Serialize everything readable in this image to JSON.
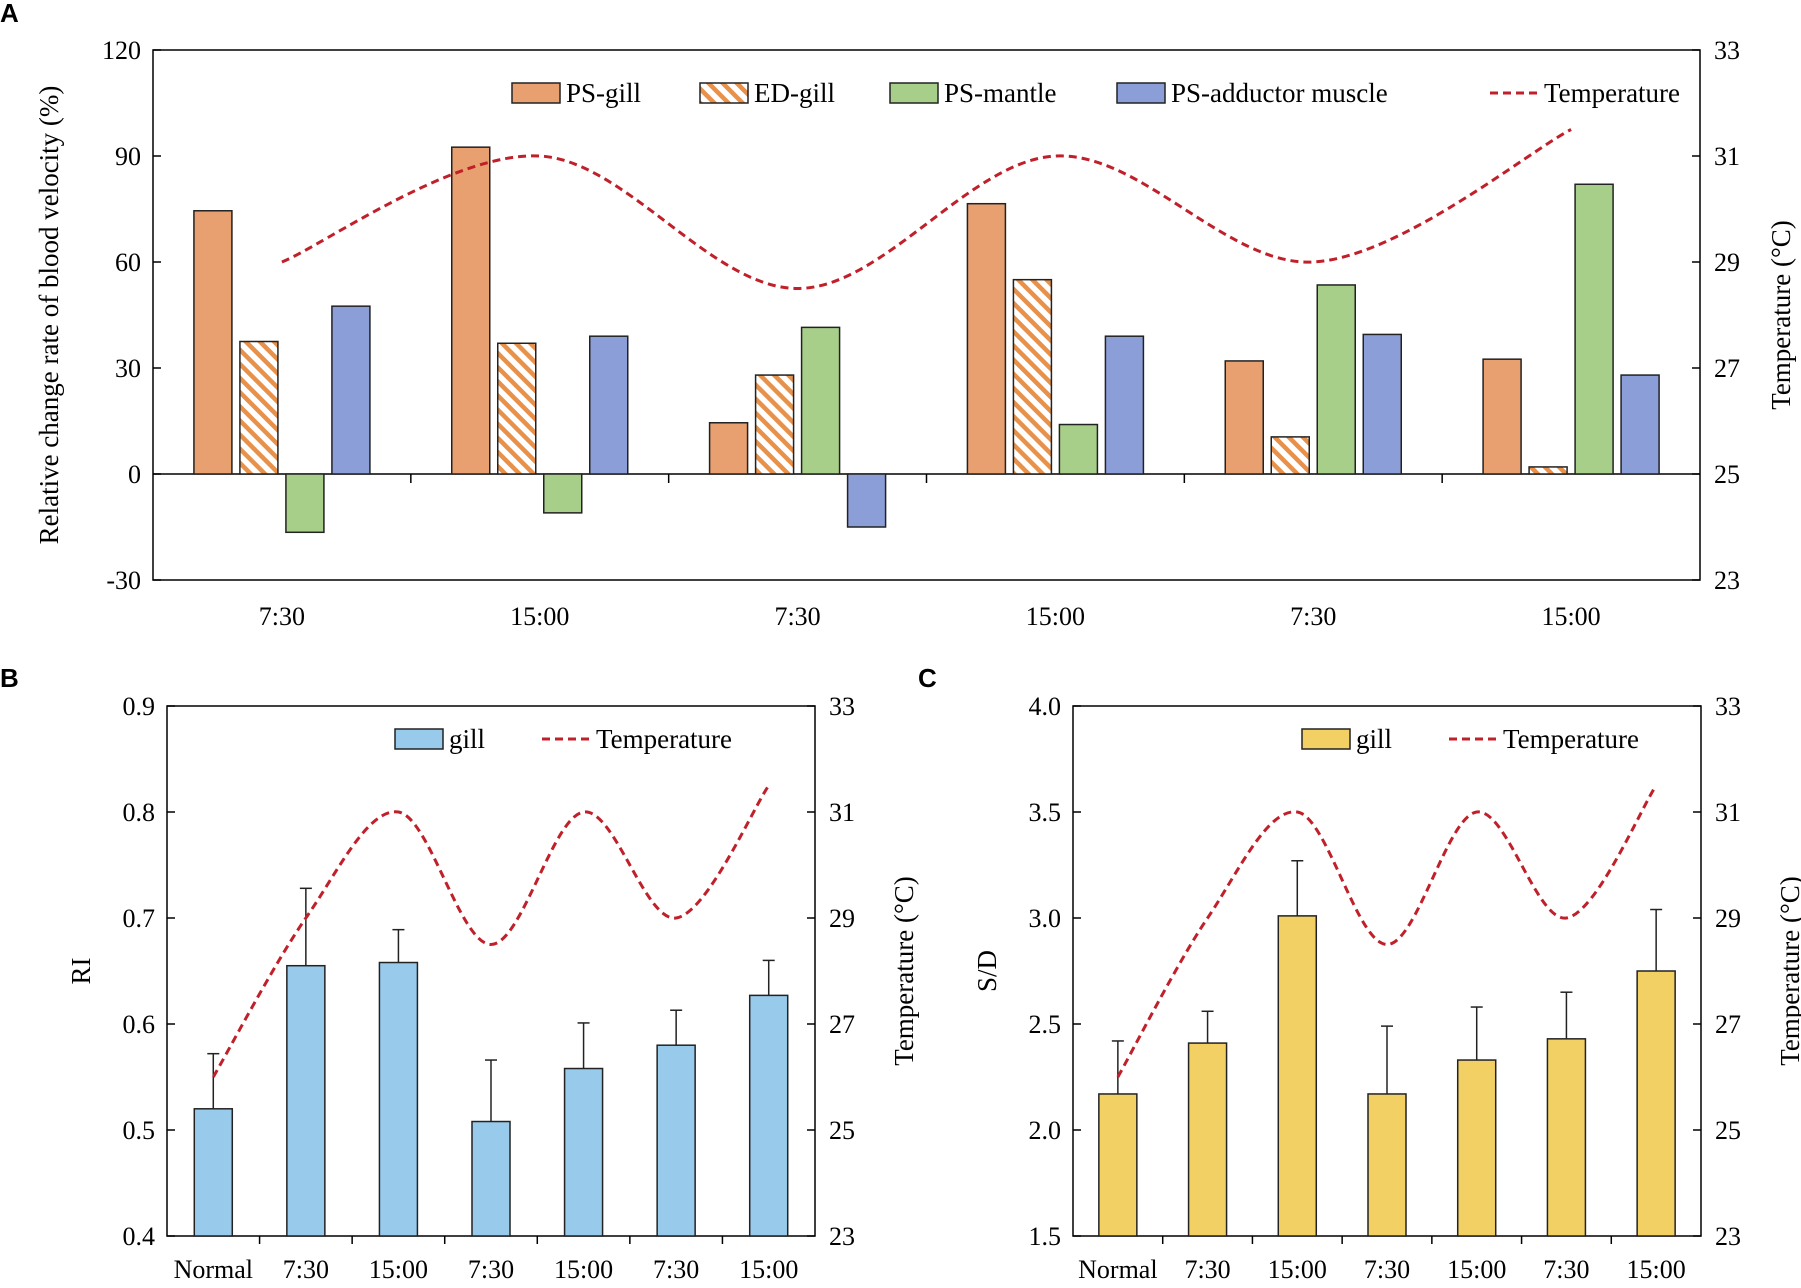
{
  "colors": {
    "ps_gill": "#E8A070",
    "ps_gill_edge": "#7A4A2A",
    "ed_gill_hatch": "#E8914A",
    "ps_mantle": "#A8CF8A",
    "ps_adductor": "#8C9ED8",
    "temperature": "#C0202A",
    "ri_bar": "#98CBEB",
    "sd_bar": "#F2D064"
  },
  "chart_data": [
    {
      "panel": "A",
      "type": "bar",
      "categories": [
        "7:30",
        "15:00",
        "7:30",
        "15:00",
        "7:30",
        "15:00"
      ],
      "ylabel": "Relative change rate of blood velocity (%)",
      "y2label": "Temperature (°C)",
      "ylim": [
        -30,
        120
      ],
      "yticks": [
        -30,
        0,
        30,
        60,
        90,
        120
      ],
      "y2lim": [
        23,
        33
      ],
      "y2ticks": [
        23,
        25,
        27,
        29,
        31,
        33
      ],
      "series": [
        {
          "name": "PS-gill",
          "style": "solid",
          "values": [
            74.5,
            92.5,
            14.5,
            76.5,
            32,
            32.5
          ]
        },
        {
          "name": "ED-gill",
          "style": "hatched",
          "values": [
            37.5,
            37,
            28,
            55,
            10.5,
            2
          ]
        },
        {
          "name": "PS-mantle",
          "style": "solid",
          "values": [
            -16.5,
            -11,
            41.5,
            14,
            53.5,
            82
          ]
        },
        {
          "name": "PS-adductor muscle",
          "style": "solid",
          "values": [
            47.5,
            39,
            -15,
            39,
            39.5,
            28
          ]
        }
      ],
      "temperature": {
        "name": "Temperature",
        "x": [
          0,
          1,
          2,
          3,
          4,
          5
        ],
        "values": [
          29,
          31,
          28.5,
          31,
          29,
          31.5
        ]
      }
    },
    {
      "panel": "B",
      "type": "bar",
      "categories": [
        "Normal",
        "7:30",
        "15:00",
        "7:30",
        "15:00",
        "7:30",
        "15:00"
      ],
      "ylabel": "RI",
      "y2label": "Temperature (°C)",
      "ylim": [
        0.4,
        0.9
      ],
      "yticks": [
        "0.4",
        "0.5",
        "0.6",
        "0.7",
        "0.8",
        "0.9"
      ],
      "y2lim": [
        23,
        33
      ],
      "y2ticks": [
        23,
        25,
        27,
        29,
        31,
        33
      ],
      "series": [
        {
          "name": "gill",
          "values": [
            0.52,
            0.655,
            0.658,
            0.508,
            0.558,
            0.58,
            0.627
          ],
          "errors": [
            0.052,
            0.073,
            0.031,
            0.058,
            0.043,
            0.033,
            0.033
          ]
        }
      ],
      "temperature": {
        "name": "Temperature",
        "x": [
          0,
          1,
          2,
          3,
          4,
          5,
          6
        ],
        "values": [
          26,
          29,
          31,
          28.5,
          31,
          29,
          31.5
        ]
      }
    },
    {
      "panel": "C",
      "type": "bar",
      "categories": [
        "Normal",
        "7:30",
        "15:00",
        "7:30",
        "15:00",
        "7:30",
        "15:00"
      ],
      "ylabel": "S/D",
      "y2label": "Temperature (°C)",
      "ylim": [
        1.5,
        4.0
      ],
      "yticks": [
        "1.5",
        "2.0",
        "2.5",
        "3.0",
        "3.5",
        "4.0"
      ],
      "y2lim": [
        23,
        33
      ],
      "y2ticks": [
        23,
        25,
        27,
        29,
        31,
        33
      ],
      "series": [
        {
          "name": "gill",
          "values": [
            2.17,
            2.41,
            3.01,
            2.17,
            2.33,
            2.43,
            2.75
          ],
          "errors": [
            0.25,
            0.15,
            0.26,
            0.32,
            0.25,
            0.22,
            0.29
          ]
        }
      ],
      "temperature": {
        "name": "Temperature",
        "x": [
          0,
          1,
          2,
          3,
          4,
          5,
          6
        ],
        "values": [
          26,
          29,
          31,
          28.5,
          31,
          29,
          31.5
        ]
      }
    }
  ]
}
